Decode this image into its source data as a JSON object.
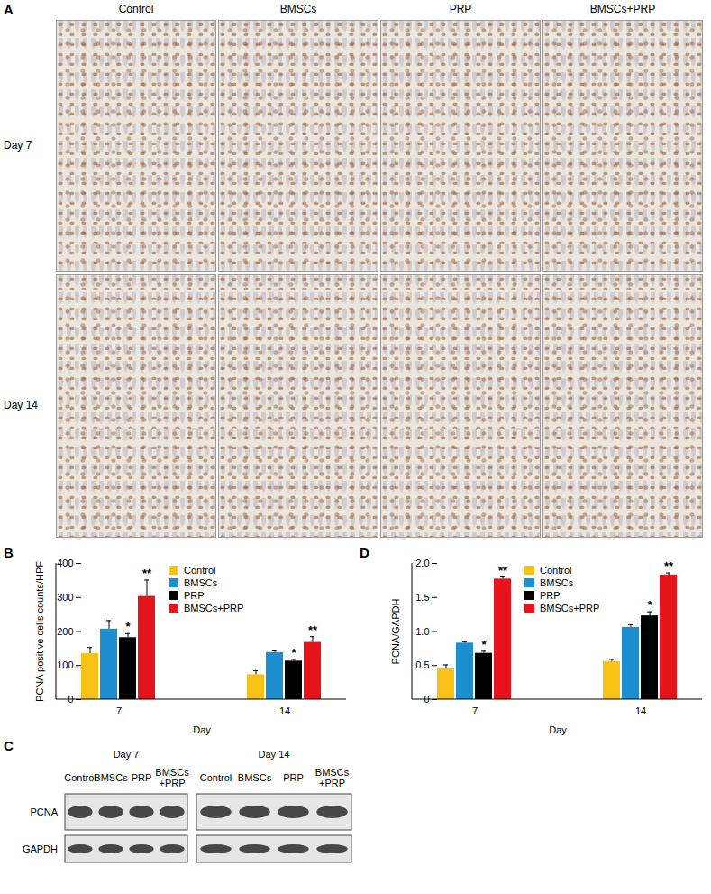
{
  "panel_a": {
    "letter": "A",
    "columns": [
      "Control",
      "BMSCs",
      "PRP",
      "BMSCs+PRP"
    ],
    "rows": [
      "Day 7",
      "Day 14"
    ]
  },
  "chart_data": [
    {
      "letter": "B",
      "type": "bar",
      "categories": [
        "7",
        "14"
      ],
      "x_label": "Day",
      "y_label": "PCNA positive cells counts/HPF",
      "ylim": [
        0,
        400
      ],
      "yticks": [
        0,
        100,
        200,
        300,
        400
      ],
      "legend": "top",
      "series": [
        {
          "name": "Control",
          "color": "#f7c215",
          "values": [
            135,
            73
          ],
          "errors": [
            18,
            12
          ],
          "significance": [
            null,
            null
          ]
        },
        {
          "name": "BMSCs",
          "color": "#1b8fd2",
          "values": [
            207,
            138
          ],
          "errors": [
            25,
            5
          ],
          "significance": [
            null,
            null
          ]
        },
        {
          "name": "PRP",
          "color": "#000000",
          "values": [
            182,
            113
          ],
          "errors": [
            12,
            5
          ],
          "significance": [
            "*",
            "*"
          ]
        },
        {
          "name": "BMSCs+PRP",
          "color": "#e8141b",
          "values": [
            303,
            168
          ],
          "errors": [
            48,
            17
          ],
          "significance": [
            "**",
            "**"
          ]
        }
      ]
    },
    {
      "letter": "D",
      "type": "bar",
      "categories": [
        "7",
        "14"
      ],
      "x_label": "Day",
      "y_label": "PCNA/GAPDH",
      "ylim": [
        0,
        2
      ],
      "yticks": [
        0,
        0.5,
        {
          "value": 1,
          "label": "1.0"
        },
        1.5,
        {
          "value": 2,
          "label": "2.0"
        }
      ],
      "legend": "top",
      "series": [
        {
          "name": "Control",
          "color": "#f7c215",
          "values": [
            0.45,
            0.56
          ],
          "errors": [
            0.06,
            0.03
          ],
          "significance": [
            null,
            null
          ]
        },
        {
          "name": "BMSCs",
          "color": "#1b8fd2",
          "values": [
            0.83,
            1.06
          ],
          "errors": [
            0.02,
            0.04
          ],
          "significance": [
            null,
            null
          ]
        },
        {
          "name": "PRP",
          "color": "#000000",
          "values": [
            0.68,
            1.23
          ],
          "errors": [
            0.03,
            0.06
          ],
          "significance": [
            "*",
            "*"
          ]
        },
        {
          "name": "BMSCs+PRP",
          "color": "#e8141b",
          "values": [
            1.77,
            1.83
          ],
          "errors": [
            0.03,
            0.03
          ],
          "significance": [
            "**",
            "**"
          ]
        }
      ]
    }
  ],
  "panel_c": {
    "letter": "C",
    "rows": [
      "PCNA",
      "GAPDH"
    ],
    "blots": [
      {
        "title": "Day 7",
        "lanes": [
          [
            "Control"
          ],
          [
            "BMSCs"
          ],
          [
            "PRP"
          ],
          [
            "BMSCs",
            "+PRP"
          ]
        ]
      },
      {
        "title": "Day 14",
        "lanes": [
          [
            "Control"
          ],
          [
            "BMSCs"
          ],
          [
            "PRP"
          ],
          [
            "BMSCs",
            "+PRP"
          ]
        ]
      }
    ]
  }
}
